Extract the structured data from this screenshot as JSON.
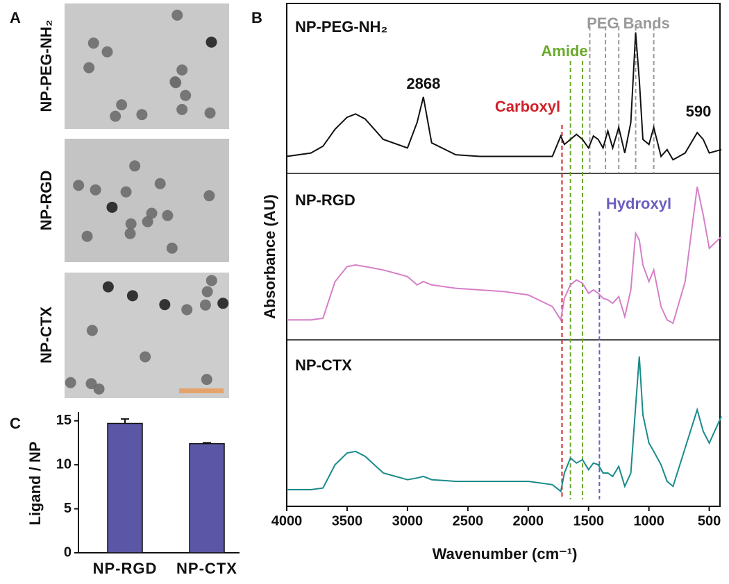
{
  "tem_panel": {
    "label": "A",
    "images": [
      {
        "label": "NP-PEG-NH₂"
      },
      {
        "label": "NP-RGD"
      },
      {
        "label": "NP-CTX"
      }
    ]
  },
  "chart_data": [
    {
      "type": "bar",
      "panel": "C",
      "ylabel": "Ligand / NP",
      "categories": [
        "NP-RGD",
        "NP-CTX"
      ],
      "values": [
        14.7,
        12.4
      ],
      "errors": [
        0.5,
        0.1
      ],
      "color": "#5b57a6",
      "ylim": [
        0,
        16
      ],
      "yticks": [
        0,
        5,
        10,
        15
      ]
    },
    {
      "type": "line",
      "panel": "B",
      "xlabel": "Wavenumber (cm⁻¹)",
      "ylabel": "Absorbance (AU)",
      "x": [
        4000,
        3800,
        3700,
        3600,
        3500,
        3430,
        3350,
        3200,
        3000,
        2920,
        2868,
        2800,
        2600,
        2400,
        2200,
        2000,
        1800,
        1730,
        1700,
        1650,
        1600,
        1550,
        1500,
        1460,
        1420,
        1380,
        1340,
        1300,
        1250,
        1200,
        1150,
        1110,
        1080,
        1050,
        1000,
        960,
        900,
        850,
        800,
        700,
        600,
        550,
        500,
        400
      ],
      "xlim": [
        4000,
        400
      ],
      "xticks": [
        4000,
        3500,
        3000,
        2500,
        2000,
        1500,
        1000,
        500
      ],
      "ylim": [
        0,
        1
      ],
      "series": [
        {
          "name": "NP-PEG-NH₂",
          "color": "#111111",
          "values": [
            0.1,
            0.12,
            0.16,
            0.26,
            0.33,
            0.35,
            0.32,
            0.2,
            0.15,
            0.3,
            0.45,
            0.18,
            0.11,
            0.1,
            0.1,
            0.1,
            0.1,
            0.22,
            0.17,
            0.2,
            0.23,
            0.2,
            0.15,
            0.22,
            0.2,
            0.15,
            0.25,
            0.15,
            0.27,
            0.12,
            0.3,
            0.83,
            0.55,
            0.2,
            0.17,
            0.27,
            0.1,
            0.14,
            0.08,
            0.12,
            0.24,
            0.2,
            0.12,
            0.14
          ]
        },
        {
          "name": "NP-RGD",
          "color": "#d67fc8",
          "values": [
            0.12,
            0.12,
            0.13,
            0.35,
            0.44,
            0.45,
            0.44,
            0.42,
            0.38,
            0.33,
            0.35,
            0.33,
            0.31,
            0.3,
            0.29,
            0.27,
            0.2,
            0.12,
            0.25,
            0.33,
            0.36,
            0.34,
            0.28,
            0.3,
            0.28,
            0.25,
            0.24,
            0.22,
            0.26,
            0.14,
            0.3,
            0.64,
            0.6,
            0.45,
            0.35,
            0.42,
            0.2,
            0.12,
            0.1,
            0.35,
            0.92,
            0.75,
            0.55,
            0.62
          ]
        },
        {
          "name": "NP-CTX",
          "color": "#1a8a8a",
          "values": [
            0.1,
            0.1,
            0.11,
            0.25,
            0.32,
            0.33,
            0.3,
            0.2,
            0.16,
            0.17,
            0.18,
            0.16,
            0.15,
            0.15,
            0.15,
            0.15,
            0.13,
            0.09,
            0.2,
            0.29,
            0.26,
            0.28,
            0.22,
            0.26,
            0.25,
            0.2,
            0.2,
            0.18,
            0.24,
            0.12,
            0.2,
            0.6,
            0.9,
            0.55,
            0.38,
            0.33,
            0.25,
            0.15,
            0.12,
            0.35,
            0.58,
            0.45,
            0.38,
            0.54
          ]
        }
      ],
      "reference_lines": [
        {
          "label": "Carboxyl",
          "color": "#d0212a",
          "x": [
            1720
          ]
        },
        {
          "label": "Amide",
          "color": "#6aaa2a",
          "x": [
            1650,
            1550
          ]
        },
        {
          "label": "Hydroxyl",
          "color": "#6a5fc0",
          "x": [
            1410
          ]
        },
        {
          "label": "PEG Bands",
          "color": "#999999",
          "x": [
            1490,
            1360,
            1250,
            1110,
            960
          ]
        }
      ],
      "peak_labels": [
        2868,
        590
      ]
    }
  ]
}
